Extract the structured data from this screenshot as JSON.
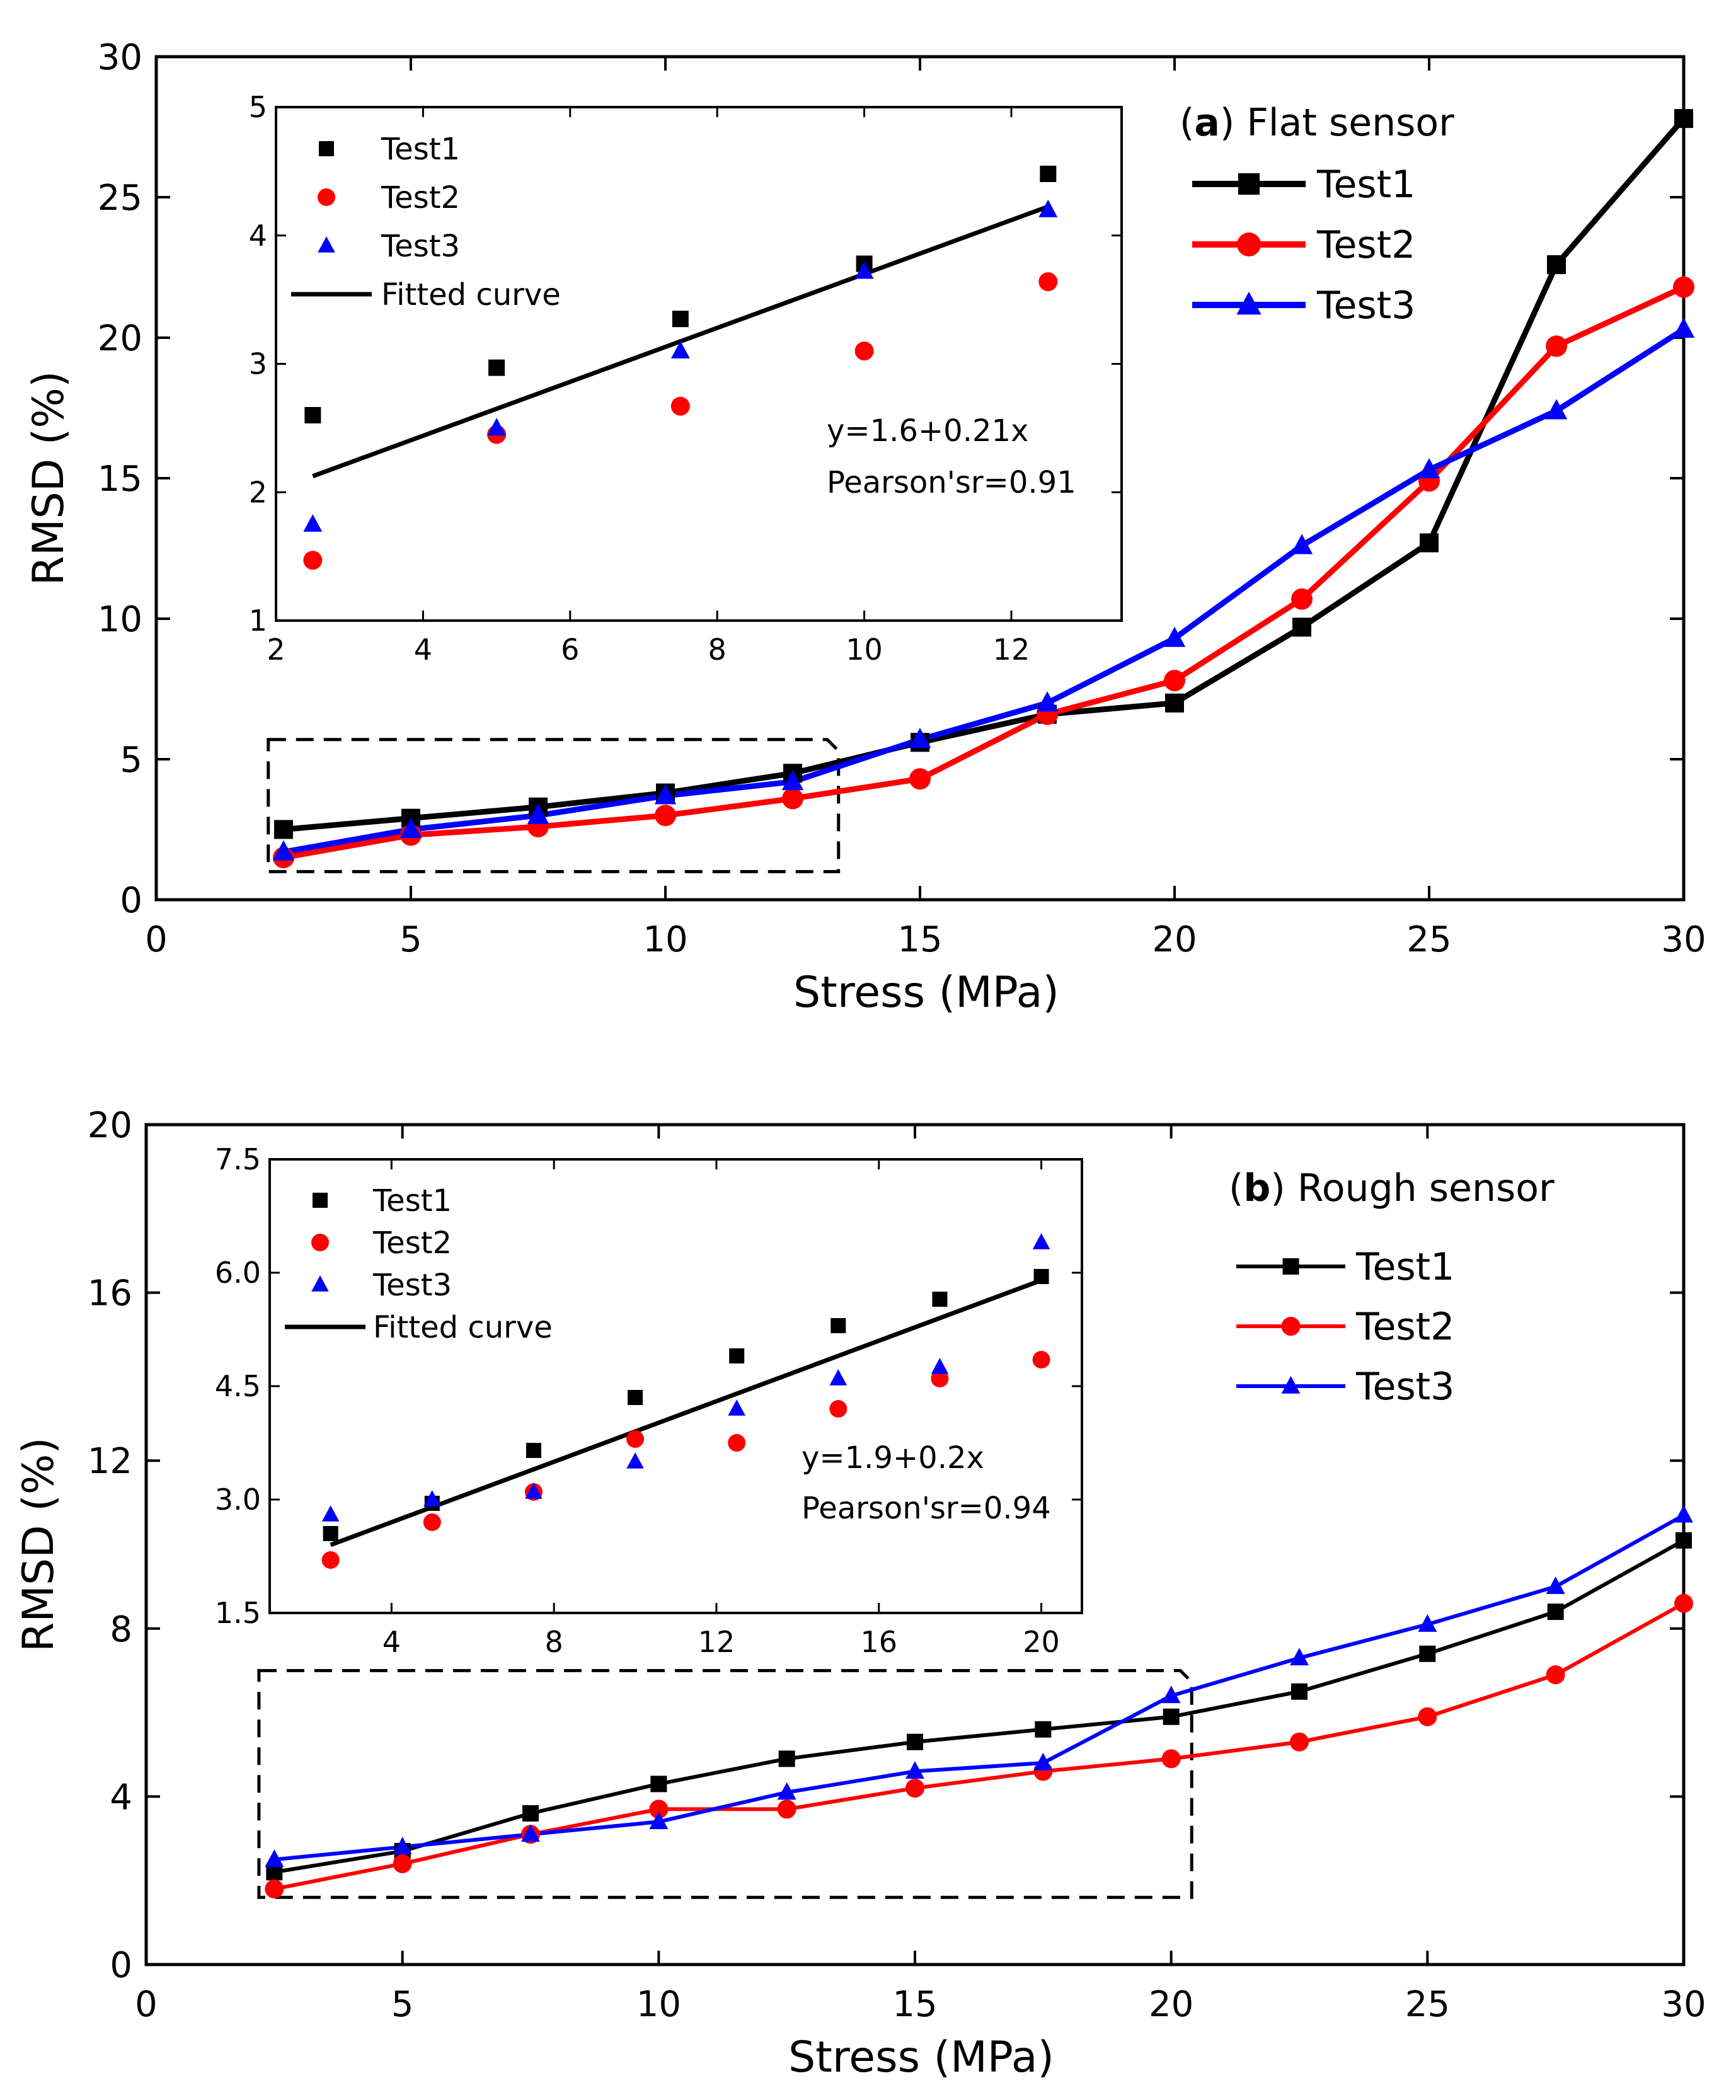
{
  "colors": {
    "test1": "#000000",
    "test2": "#ff0000",
    "test3": "#0000ff"
  },
  "chart_data": [
    {
      "id": "a",
      "type": "line",
      "panel_letter": "a",
      "panel_title": "Flat sensor",
      "xlabel": "Stress (MPa)",
      "ylabel": "RMSD (%)",
      "xlim": [
        0,
        30
      ],
      "ylim": [
        0,
        30
      ],
      "xticks": [
        0,
        5,
        10,
        15,
        20,
        25,
        30
      ],
      "yticks": [
        0,
        5,
        10,
        15,
        20,
        25,
        30
      ],
      "legend_position": "top-right",
      "x": [
        2.5,
        5,
        7.5,
        10,
        12.5,
        15,
        17.5,
        20,
        22.5,
        25,
        27.5,
        30
      ],
      "series": [
        {
          "name": "Test1",
          "marker": "square",
          "values": [
            2.5,
            2.9,
            3.3,
            3.8,
            4.5,
            5.6,
            6.6,
            7.0,
            9.7,
            12.7,
            22.6,
            27.8
          ]
        },
        {
          "name": "Test2",
          "marker": "circle",
          "values": [
            1.5,
            2.3,
            2.6,
            3.0,
            3.6,
            4.3,
            6.6,
            7.8,
            10.7,
            14.9,
            19.7,
            21.8
          ]
        },
        {
          "name": "Test3",
          "marker": "triangle",
          "values": [
            1.7,
            2.5,
            3.0,
            3.7,
            4.2,
            5.7,
            7.0,
            9.3,
            12.6,
            15.3,
            17.4,
            20.3
          ]
        }
      ],
      "highlight_box": {
        "x": [
          2.2,
          13.4
        ],
        "y": [
          1.0,
          5.7
        ]
      },
      "inset": {
        "xlim": [
          2,
          13.5
        ],
        "ylim": [
          1,
          5
        ],
        "xticks": [
          2,
          4,
          6,
          8,
          10,
          12
        ],
        "yticks": [
          1,
          2,
          3,
          4,
          5
        ],
        "x": [
          2.5,
          5,
          7.5,
          10,
          12.5
        ],
        "series": [
          {
            "name": "Test1",
            "marker": "square",
            "values": [
              2.6,
              2.97,
              3.35,
              3.78,
              4.48
            ]
          },
          {
            "name": "Test2",
            "marker": "circle",
            "values": [
              1.47,
              2.45,
              2.67,
              3.1,
              3.64
            ]
          },
          {
            "name": "Test3",
            "marker": "triangle",
            "values": [
              1.75,
              2.5,
              3.1,
              3.72,
              4.2
            ]
          }
        ],
        "fit": {
          "name": "Fitted curve",
          "intercept": 1.6,
          "slope": 0.21,
          "x_range": [
            2.5,
            12.5
          ]
        },
        "equation": "y=1.6+0.21x",
        "pearson": "Pearson'sr=0.91"
      }
    },
    {
      "id": "b",
      "type": "line",
      "panel_letter": "b",
      "panel_title": "Rough sensor",
      "xlabel": "Stress (MPa)",
      "ylabel": "RMSD (%)",
      "xlim": [
        0,
        30
      ],
      "ylim": [
        0,
        20
      ],
      "xticks": [
        0,
        5,
        10,
        15,
        20,
        25,
        30
      ],
      "yticks": [
        0,
        4,
        8,
        12,
        16,
        20
      ],
      "legend_position": "top-right",
      "x": [
        2.5,
        5,
        7.5,
        10,
        12.5,
        15,
        17.5,
        20,
        22.5,
        25,
        27.5,
        30
      ],
      "series": [
        {
          "name": "Test1",
          "marker": "square",
          "values": [
            2.2,
            2.7,
            3.6,
            4.3,
            4.9,
            5.3,
            5.6,
            5.9,
            6.5,
            7.4,
            8.4,
            10.1
          ]
        },
        {
          "name": "Test2",
          "marker": "circle",
          "values": [
            1.8,
            2.4,
            3.1,
            3.7,
            3.7,
            4.2,
            4.6,
            4.9,
            5.3,
            5.9,
            6.9,
            8.6
          ]
        },
        {
          "name": "Test3",
          "marker": "triangle",
          "values": [
            2.5,
            2.8,
            3.1,
            3.4,
            4.1,
            4.6,
            4.8,
            6.4,
            7.3,
            8.1,
            9.0,
            10.7
          ]
        }
      ],
      "highlight_box": {
        "x": [
          2.2,
          20.4
        ],
        "y": [
          1.6,
          7.0
        ]
      },
      "inset": {
        "xlim": [
          1,
          21
        ],
        "ylim": [
          1.5,
          7.5
        ],
        "xticks": [
          4,
          8,
          12,
          16,
          20
        ],
        "yticks": [
          1.5,
          3.0,
          4.5,
          6.0,
          7.5
        ],
        "ytick_labels": [
          "1.5",
          "3.0",
          "4.5",
          "6.0",
          "7.5"
        ],
        "x": [
          2.5,
          5,
          7.5,
          10,
          12.5,
          15,
          17.5,
          20
        ],
        "series": [
          {
            "name": "Test1",
            "marker": "square",
            "values": [
              2.55,
              2.95,
              3.65,
              4.35,
              4.9,
              5.3,
              5.65,
              5.95
            ]
          },
          {
            "name": "Test2",
            "marker": "circle",
            "values": [
              2.2,
              2.7,
              3.1,
              3.8,
              3.75,
              4.2,
              4.6,
              4.85
            ]
          },
          {
            "name": "Test3",
            "marker": "triangle",
            "values": [
              2.8,
              3.0,
              3.1,
              3.5,
              4.2,
              4.6,
              4.75,
              6.4
            ]
          }
        ],
        "fit": {
          "name": "Fitted curve",
          "intercept": 1.9,
          "slope": 0.2,
          "x_range": [
            2.5,
            20
          ]
        },
        "equation": "y=1.9+0.2x",
        "pearson": "Pearson'sr=0.94"
      }
    }
  ]
}
